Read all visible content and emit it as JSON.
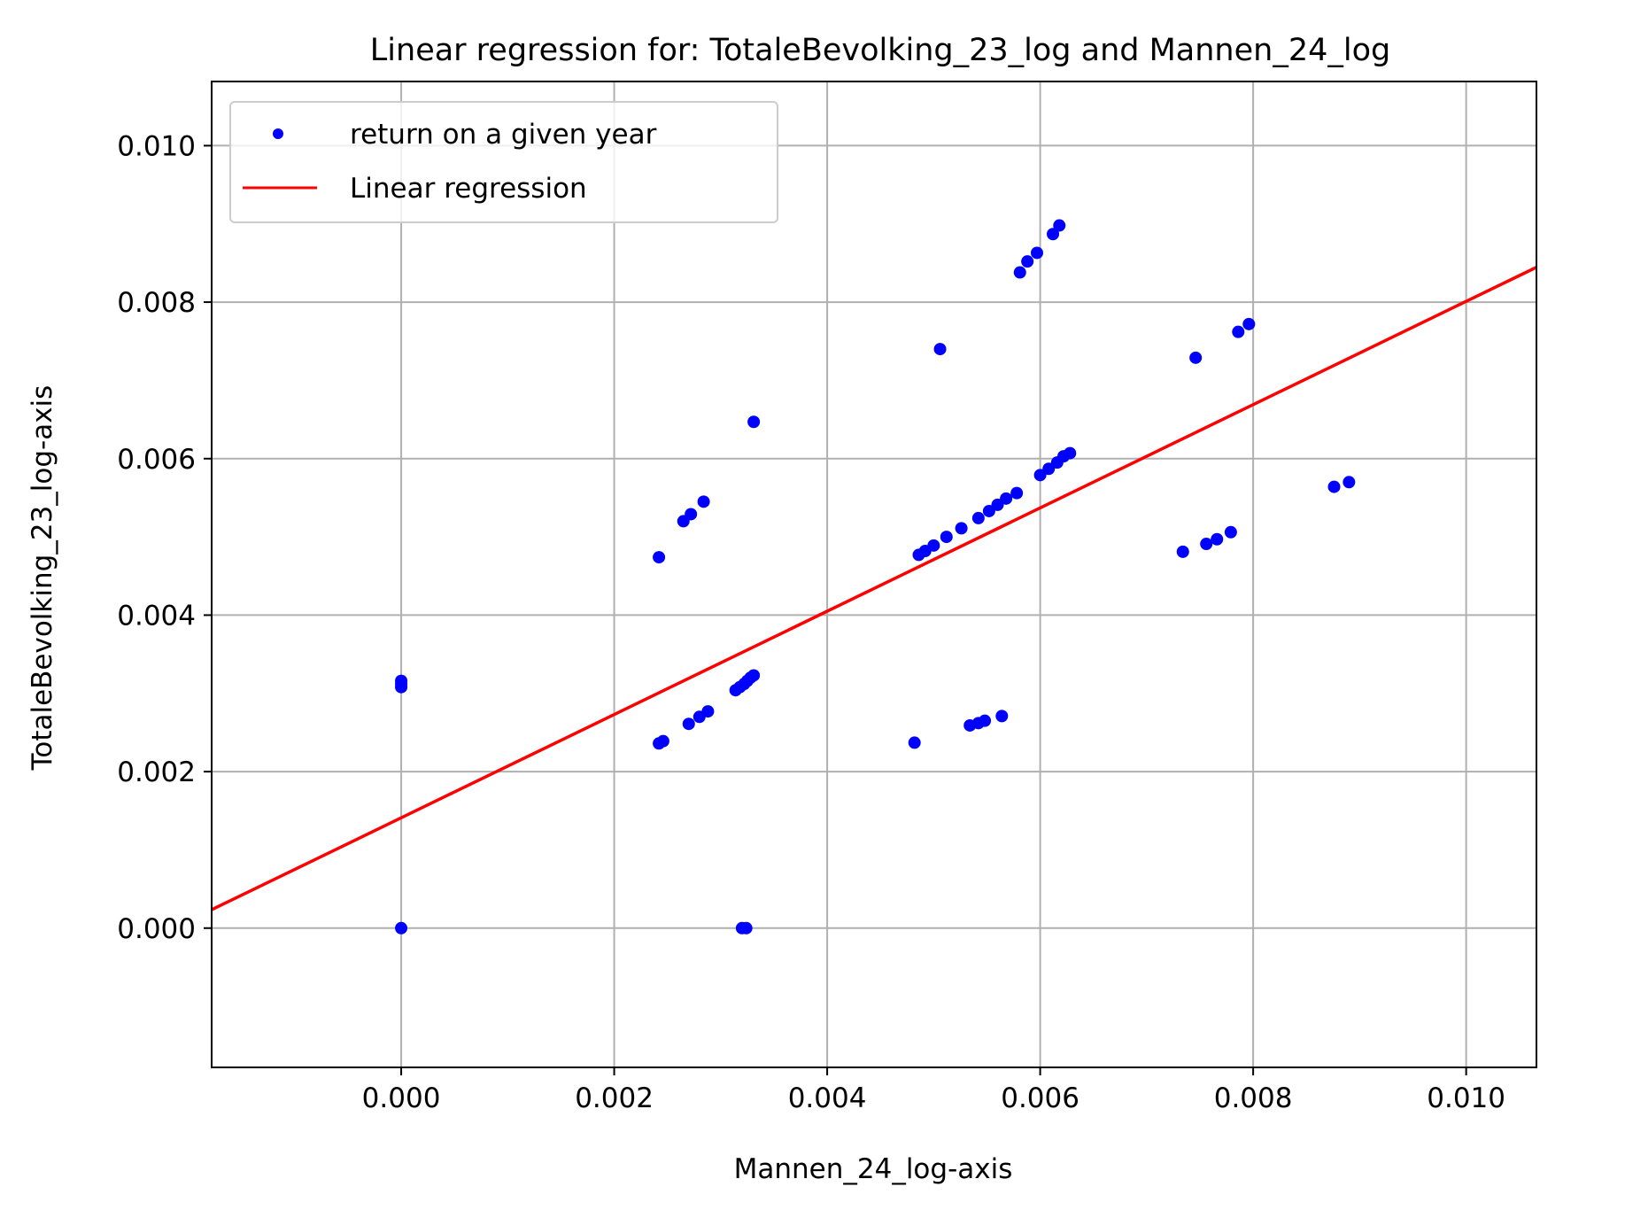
{
  "chart_data": {
    "type": "scatter",
    "title": "Linear regression for: TotaleBevolking_23_log and Mannen_24_log",
    "xlabel": "Mannen_24_log-axis",
    "ylabel": "TotaleBevolking_23_log-axis",
    "xlim": [
      -0.00178,
      0.01066
    ],
    "ylim": [
      -0.00178,
      0.01082
    ],
    "xticks": [
      0.0,
      0.002,
      0.004,
      0.006,
      0.008,
      0.01
    ],
    "yticks": [
      0.0,
      0.002,
      0.004,
      0.006,
      0.008,
      0.01
    ],
    "xtick_labels": [
      "0.000",
      "0.002",
      "0.004",
      "0.006",
      "0.008",
      "0.010"
    ],
    "ytick_labels": [
      "0.000",
      "0.002",
      "0.004",
      "0.006",
      "0.008",
      "0.010"
    ],
    "grid": true,
    "legend_position": "top-left",
    "series": [
      {
        "name": "return on a given year",
        "kind": "scatter",
        "color": "#0000ff",
        "points": [
          [
            0.0,
            0.0
          ],
          [
            0.0,
            0.00308
          ],
          [
            0.0,
            0.00312
          ],
          [
            0.0,
            0.00316
          ],
          [
            0.0032,
            0.0
          ],
          [
            0.00324,
            0.0
          ],
          [
            0.00242,
            0.00236
          ],
          [
            0.00246,
            0.00239
          ],
          [
            0.0027,
            0.00261
          ],
          [
            0.0028,
            0.0027
          ],
          [
            0.00288,
            0.00277
          ],
          [
            0.00314,
            0.00304
          ],
          [
            0.00318,
            0.00308
          ],
          [
            0.00322,
            0.00312
          ],
          [
            0.00325,
            0.00316
          ],
          [
            0.00328,
            0.0032
          ],
          [
            0.00331,
            0.00323
          ],
          [
            0.00242,
            0.00474
          ],
          [
            0.00265,
            0.0052
          ],
          [
            0.00272,
            0.00529
          ],
          [
            0.00284,
            0.00545
          ],
          [
            0.00331,
            0.00647
          ],
          [
            0.00506,
            0.0074
          ],
          [
            0.00486,
            0.00477
          ],
          [
            0.00492,
            0.00482
          ],
          [
            0.005,
            0.00489
          ],
          [
            0.00512,
            0.005
          ],
          [
            0.00526,
            0.00511
          ],
          [
            0.00542,
            0.00524
          ],
          [
            0.00552,
            0.00533
          ],
          [
            0.0056,
            0.00541
          ],
          [
            0.00568,
            0.00549
          ],
          [
            0.00578,
            0.00556
          ],
          [
            0.006,
            0.00579
          ],
          [
            0.00608,
            0.00587
          ],
          [
            0.00616,
            0.00595
          ],
          [
            0.00622,
            0.00603
          ],
          [
            0.00628,
            0.00607
          ],
          [
            0.00482,
            0.00237
          ],
          [
            0.00534,
            0.00259
          ],
          [
            0.00542,
            0.00262
          ],
          [
            0.00548,
            0.00265
          ],
          [
            0.00564,
            0.00271
          ],
          [
            0.00581,
            0.00838
          ],
          [
            0.00588,
            0.00852
          ],
          [
            0.00597,
            0.00863
          ],
          [
            0.00612,
            0.00887
          ],
          [
            0.00618,
            0.00898
          ],
          [
            0.00734,
            0.00481
          ],
          [
            0.00756,
            0.00491
          ],
          [
            0.00766,
            0.00497
          ],
          [
            0.00779,
            0.00506
          ],
          [
            0.00746,
            0.00729
          ],
          [
            0.00786,
            0.00762
          ],
          [
            0.00796,
            0.00772
          ],
          [
            0.00876,
            0.00564
          ],
          [
            0.0089,
            0.0057
          ]
        ]
      },
      {
        "name": "Linear regression",
        "kind": "line",
        "color": "#ff0000",
        "slope": 0.66,
        "intercept": 0.00141
      }
    ]
  }
}
